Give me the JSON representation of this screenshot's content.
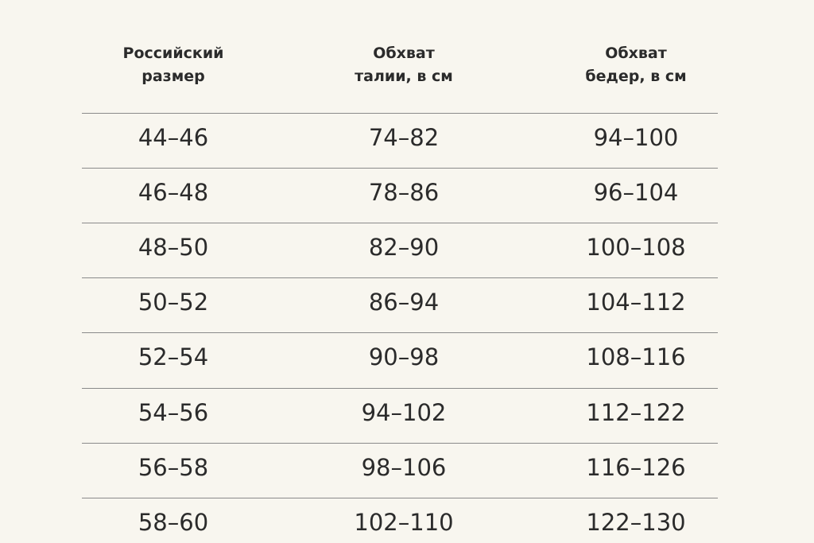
{
  "table": {
    "header": [
      [
        "Российский",
        "размер"
      ],
      [
        "Обхват",
        "талии, в см"
      ],
      [
        "Обхват",
        "бедер, в см"
      ]
    ],
    "rows": [
      [
        "44–46",
        "74–82",
        "94–100"
      ],
      [
        "46–48",
        "78–86",
        "96–104"
      ],
      [
        "48–50",
        "82–90",
        "100–108"
      ],
      [
        "50–52",
        "86–94",
        "104–112"
      ],
      [
        "52–54",
        "90–98",
        "108–116"
      ],
      [
        "54–56",
        "94–102",
        "112–122"
      ],
      [
        "56–58",
        "98–106",
        "116–126"
      ],
      [
        "58–60",
        "102–110",
        "122–130"
      ]
    ]
  }
}
